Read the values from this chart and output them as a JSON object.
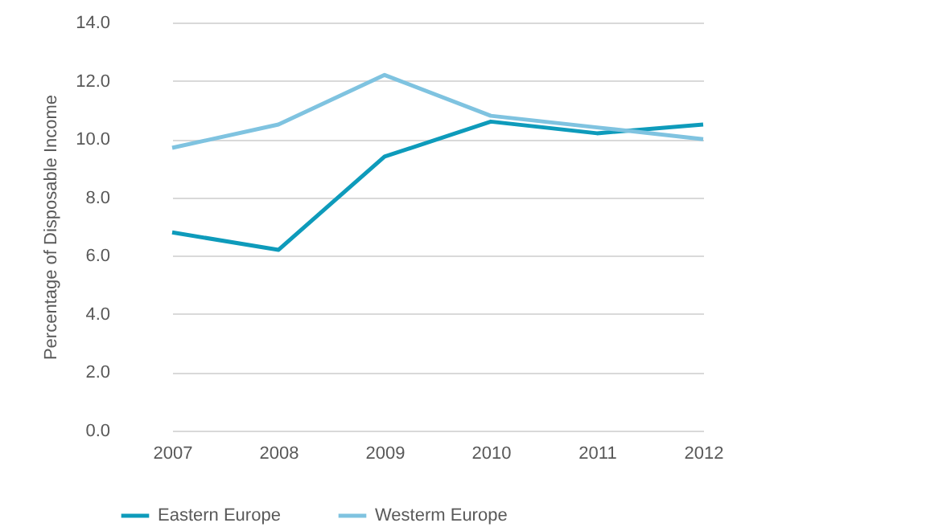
{
  "chart_data": {
    "type": "line",
    "ylabel": "Percentage of Disposable Income",
    "categories": [
      "2007",
      "2008",
      "2009",
      "2010",
      "2011",
      "2012"
    ],
    "series": [
      {
        "name": "Eastern Europe",
        "color": "#0e9bbb",
        "values": [
          6.8,
          6.2,
          9.4,
          10.6,
          10.2,
          10.5
        ]
      },
      {
        "name": "Westerm Europe",
        "color": "#7fc3e0",
        "values": [
          9.7,
          10.5,
          12.2,
          10.8,
          10.4,
          10.0
        ]
      }
    ],
    "ylim": [
      0,
      14
    ],
    "yticks": [
      {
        "value": 0,
        "label": "0.0"
      },
      {
        "value": 2,
        "label": "2.0"
      },
      {
        "value": 4,
        "label": "4.0"
      },
      {
        "value": 6,
        "label": "6.0"
      },
      {
        "value": 8,
        "label": "8.0"
      },
      {
        "value": 10,
        "label": "10.0"
      },
      {
        "value": 12,
        "label": "12.0"
      },
      {
        "value": 14,
        "label": "14.0"
      }
    ],
    "grid": "y",
    "legend": "bottom",
    "marker": "none",
    "line_style": "solid"
  }
}
